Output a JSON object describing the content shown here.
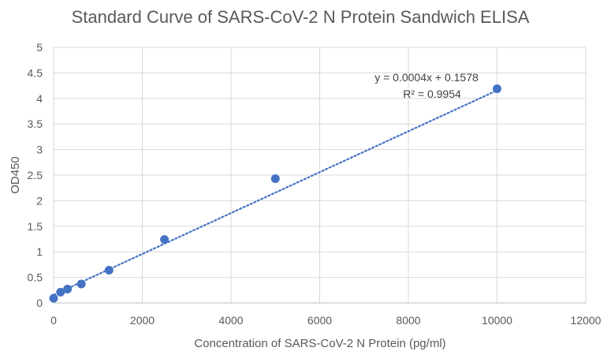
{
  "chart_data": {
    "type": "scatter",
    "title": "Standard Curve of SARS-CoV-2 N Protein  Sandwich ELISA",
    "xlabel": "Concentration of SARS-CoV-2 N Protein (pg/ml)",
    "ylabel": "OD450",
    "xlim": [
      0,
      12000
    ],
    "ylim": [
      0,
      5
    ],
    "x_ticks": [
      0,
      2000,
      4000,
      6000,
      8000,
      10000,
      12000
    ],
    "y_ticks": [
      0,
      0.5,
      1,
      1.5,
      2,
      2.5,
      3,
      3.5,
      4,
      4.5,
      5
    ],
    "y_tick_labels": [
      "0",
      "0.5",
      "1",
      "1.5",
      "2",
      "2.5",
      "3",
      "3.5",
      "4",
      "4.5",
      "5"
    ],
    "grid": true,
    "series": [
      {
        "x": [
          0,
          156.25,
          312.5,
          625,
          1250,
          2500,
          5000,
          10000
        ],
        "y": [
          0.09,
          0.21,
          0.27,
          0.37,
          0.64,
          1.24,
          2.43,
          4.19
        ],
        "color": "#4472C4"
      }
    ],
    "trendline": {
      "kind": "linear",
      "slope": 0.0004,
      "intercept": 0.1578,
      "x_range": [
        0,
        10000
      ],
      "style": "dotted",
      "color": "#4472C4",
      "equation": "y = 0.0004x + 0.1578",
      "r_squared": "R² = 0.9954"
    },
    "gridline_color": "#d9d9d9",
    "text_color": "#595959"
  }
}
